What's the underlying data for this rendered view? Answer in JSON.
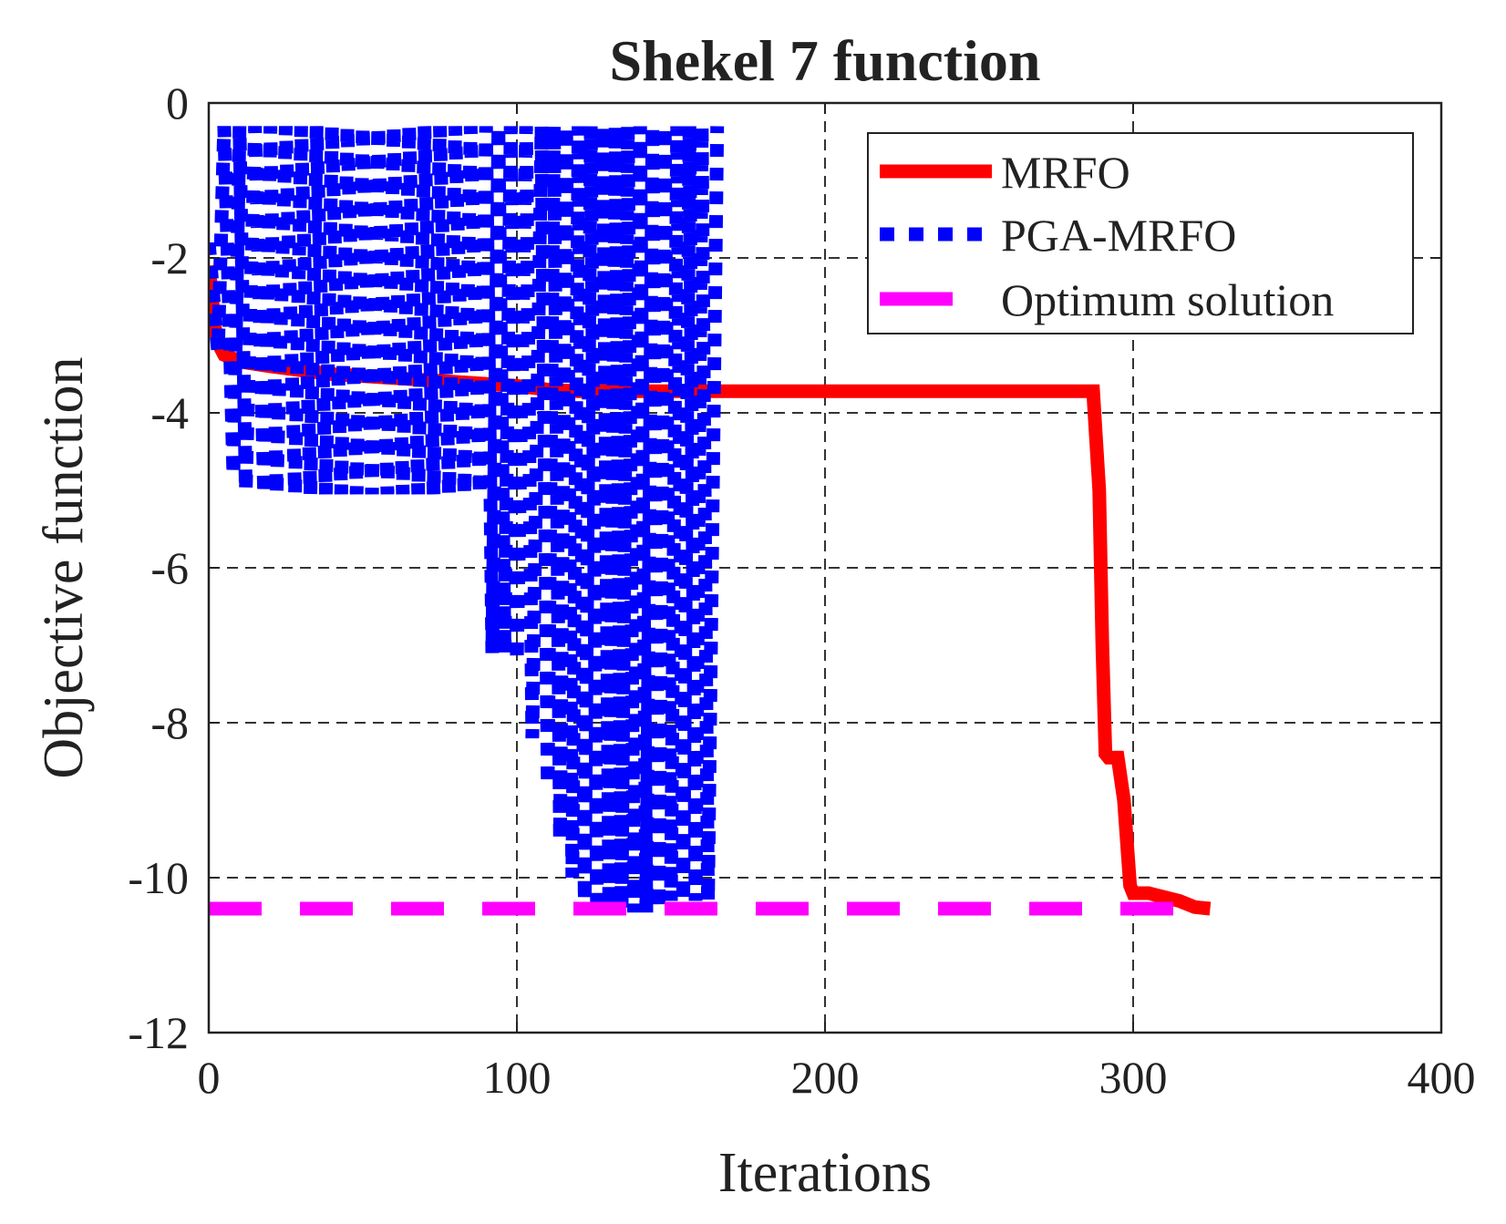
{
  "chart_data": {
    "type": "line",
    "title": "Shekel 7 function",
    "xlabel": "Iterations",
    "ylabel": "Objective function",
    "xlim": [
      0,
      400
    ],
    "ylim": [
      -12,
      0
    ],
    "xticks": [
      0,
      100,
      200,
      300,
      400
    ],
    "yticks": [
      0,
      -2,
      -4,
      -6,
      -8,
      -10,
      -12
    ],
    "xtick_labels": [
      "0",
      "100",
      "200",
      "300",
      "400"
    ],
    "ytick_labels": [
      "0",
      "-2",
      "-4",
      "-6",
      "-8",
      "-10",
      "-12"
    ],
    "grid": true,
    "legend_position": "top-right",
    "series": [
      {
        "name": "MRFO",
        "color": "#ff0000",
        "style": "solid",
        "x": [
          0,
          1,
          2,
          3,
          5,
          8,
          12,
          20,
          30,
          40,
          60,
          80,
          100,
          110,
          120,
          140,
          160,
          200,
          250,
          287,
          289,
          290,
          291,
          292,
          295,
          297,
          299,
          300,
          305,
          310,
          315,
          320,
          325
        ],
        "y": [
          -2.1,
          -2.5,
          -2.9,
          -3.1,
          -3.25,
          -3.3,
          -3.35,
          -3.4,
          -3.45,
          -3.5,
          -3.55,
          -3.6,
          -3.65,
          -3.7,
          -3.72,
          -3.72,
          -3.72,
          -3.72,
          -3.72,
          -3.72,
          -5.0,
          -7.0,
          -8.4,
          -8.45,
          -8.45,
          -9.0,
          -10.1,
          -10.2,
          -10.2,
          -10.25,
          -10.3,
          -10.38,
          -10.4
        ]
      },
      {
        "name": "PGA-MRFO",
        "color": "#0000ff",
        "style": "dotted",
        "x": [
          0,
          3,
          5,
          8,
          10,
          12,
          15,
          18,
          20,
          22,
          25,
          28,
          30,
          33,
          35,
          38,
          40,
          43,
          45,
          48,
          50,
          53,
          55,
          58,
          60,
          63,
          65,
          68,
          70,
          73,
          75,
          78,
          80,
          83,
          85,
          88,
          90,
          92,
          94,
          96,
          98,
          100,
          103,
          105,
          108,
          110,
          112,
          114,
          116,
          118,
          120,
          122,
          124,
          126,
          128,
          130,
          132,
          134,
          136,
          138,
          140,
          142,
          144,
          146,
          148,
          150,
          152,
          154,
          156,
          158,
          160,
          162,
          165
        ],
        "y": [
          -1.8,
          -3.2,
          -0.3,
          -4.8,
          -0.3,
          -5.0,
          -0.3,
          -5.05,
          -0.3,
          -5.05,
          -0.3,
          -5.05,
          -0.3,
          -5.05,
          -0.3,
          -5.05,
          -0.3,
          -5.05,
          -0.3,
          -5.05,
          -0.3,
          -5.05,
          -0.3,
          -5.05,
          -0.3,
          -5.05,
          -0.3,
          -5.05,
          -0.3,
          -5.05,
          -0.3,
          -5.05,
          -0.3,
          -5.05,
          -0.3,
          -5.05,
          -0.3,
          -7.1,
          -0.3,
          -7.1,
          -0.3,
          -7.2,
          -0.3,
          -8.2,
          -0.3,
          -8.8,
          -0.3,
          -9.5,
          -0.3,
          -10.0,
          -0.3,
          -10.3,
          -0.3,
          -10.45,
          -0.3,
          -10.4,
          -0.3,
          -10.4,
          -0.3,
          -10.45,
          -0.3,
          -10.45,
          -0.3,
          -10.4,
          -0.3,
          -10.3,
          -0.3,
          -10.3,
          -0.3,
          -10.3,
          -0.3,
          -10.3,
          -0.3
        ]
      },
      {
        "name": "Optimum solution",
        "color": "#ff00ff",
        "style": "dashed",
        "x": [
          0,
          325
        ],
        "y": [
          -10.4,
          -10.4
        ]
      }
    ]
  }
}
